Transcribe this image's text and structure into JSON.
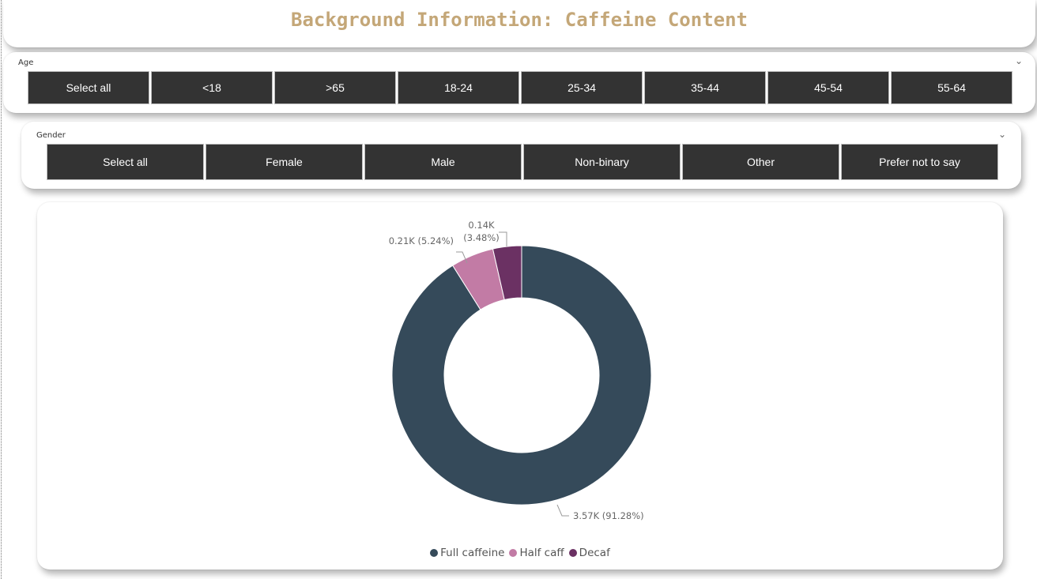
{
  "title": "Background Information: Caffeine Content",
  "age_slicer": {
    "header": "Age",
    "items": [
      "Select all",
      "<18",
      ">65",
      "18-24",
      "25-34",
      "35-44",
      "45-54",
      "55-64"
    ]
  },
  "gender_slicer": {
    "header": "Gender",
    "items": [
      "Select all",
      "Female",
      "Male",
      "Non-binary",
      "Other",
      "Prefer not to say"
    ]
  },
  "colors": {
    "title": "#c4a778",
    "tile_bg": "#333333",
    "full_caffeine": "#354a5a",
    "half_caff": "#c27ba5",
    "decaf": "#6b3163"
  },
  "chart_data": {
    "type": "pie",
    "donut": true,
    "categories": [
      "Full caffeine",
      "Half caff",
      "Decaf"
    ],
    "values": [
      3.57,
      0.21,
      0.14
    ],
    "percent": [
      91.28,
      5.24,
      3.48
    ],
    "data_labels": [
      "3.57K (91.28%)",
      "0.21K (5.24%)",
      "0.14K (3.48%)"
    ],
    "legend_position": "bottom-center"
  }
}
